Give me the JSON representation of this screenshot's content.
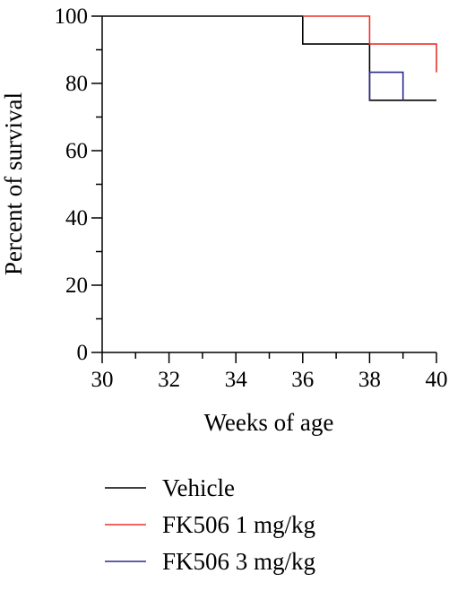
{
  "chart_data": {
    "type": "line",
    "step": true,
    "xlabel": "Weeks of age",
    "ylabel": "Percent of survival",
    "xlim": [
      30,
      40
    ],
    "ylim": [
      0,
      100
    ],
    "xticks": [
      30,
      32,
      34,
      36,
      38,
      40
    ],
    "yticks": [
      0,
      20,
      40,
      60,
      80,
      100
    ],
    "grid": false,
    "legend": "bottom",
    "series": [
      {
        "name": "Vehicle",
        "color": "#000000",
        "x": [
          30,
          36,
          36,
          38,
          38,
          40
        ],
        "y": [
          100,
          100,
          91.7,
          91.7,
          75,
          75
        ]
      },
      {
        "name": "FK506 1 mg/kg",
        "color": "#e8332a",
        "x": [
          36,
          38,
          38,
          40,
          40
        ],
        "y": [
          100,
          100,
          91.7,
          91.7,
          83.3
        ]
      },
      {
        "name": "FK506 3 mg/kg",
        "color": "#2e2a8c",
        "x": [
          38,
          38,
          39,
          39
        ],
        "y": [
          75,
          83.3,
          83.3,
          75
        ]
      }
    ]
  }
}
